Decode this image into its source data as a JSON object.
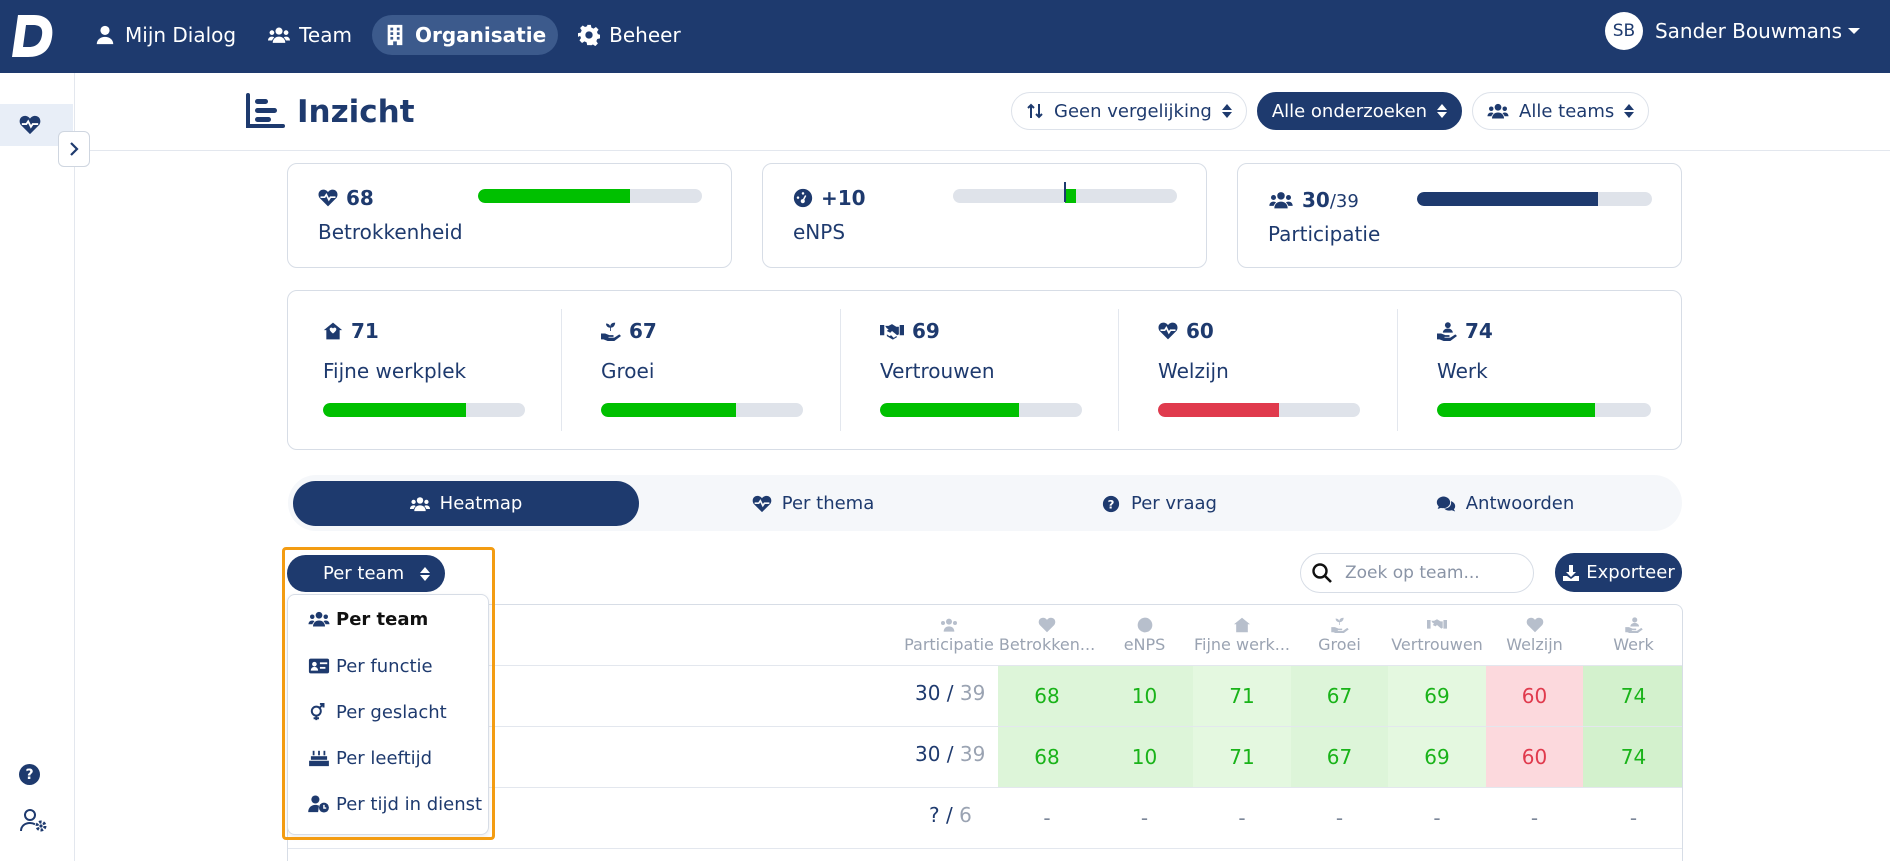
{
  "app": {
    "logo_letter": "D"
  },
  "nav": {
    "items": [
      {
        "label": "Mijn Dialog",
        "icon": "user-icon"
      },
      {
        "label": "Team",
        "icon": "users-icon"
      },
      {
        "label": "Organisatie",
        "icon": "building-icon",
        "active": true
      },
      {
        "label": "Beheer",
        "icon": "gear-icon"
      }
    ]
  },
  "user": {
    "initials": "SB",
    "name": "Sander Bouwmans"
  },
  "page": {
    "title": "Inzicht"
  },
  "filters": {
    "comparison": "Geen vergelijking",
    "surveys": "Alle onderzoeken",
    "teams": "Alle teams"
  },
  "kpis": {
    "engagement": {
      "value": "68",
      "label": "Betrokkenheid",
      "progress": 0.68,
      "color": "#00c000"
    },
    "enps": {
      "value": "+10",
      "label": "eNPS",
      "progress": 0.05,
      "color": "#00c000"
    },
    "participation": {
      "value": "30",
      "total": "/39",
      "label": "Participatie",
      "progress": 0.77,
      "color": "#1e3a6e"
    }
  },
  "themes": [
    {
      "value": "71",
      "label": "Fijne werkplek",
      "progress": 0.71,
      "color": "#00c000",
      "icon": "house-heart-icon"
    },
    {
      "value": "67",
      "label": "Groei",
      "progress": 0.67,
      "color": "#00c000",
      "icon": "hand-seedling-icon"
    },
    {
      "value": "69",
      "label": "Vertrouwen",
      "progress": 0.69,
      "color": "#00c000",
      "icon": "handshake-icon"
    },
    {
      "value": "60",
      "label": "Welzijn",
      "progress": 0.6,
      "color": "#e03a4d",
      "icon": "heart-pulse-icon"
    },
    {
      "value": "74",
      "label": "Werk",
      "progress": 0.74,
      "color": "#00c000",
      "icon": "hand-user-icon"
    }
  ],
  "tabs": [
    {
      "label": "Heatmap",
      "active": true
    },
    {
      "label": "Per thema"
    },
    {
      "label": "Per vraag"
    },
    {
      "label": "Antwoorden"
    }
  ],
  "grouping": {
    "selected": "Per team",
    "options": [
      "Per team",
      "Per functie",
      "Per geslacht",
      "Per leeftijd",
      "Per tijd in dienst"
    ]
  },
  "search": {
    "placeholder": "Zoek op team..."
  },
  "export_label": "Exporteer",
  "table": {
    "columns": [
      "Participatie",
      "Betrokken...",
      "eNPS",
      "Fijne werk...",
      "Groei",
      "Vertrouwen",
      "Welzijn",
      "Werk"
    ],
    "rows": [
      {
        "participation": "30",
        "total": "39",
        "values": [
          "68",
          "10",
          "71",
          "67",
          "69",
          "60",
          "74"
        ],
        "status": [
          "good",
          "good",
          "good",
          "good",
          "good",
          "bad",
          "good"
        ]
      },
      {
        "participation": "30",
        "total": "39",
        "values": [
          "68",
          "10",
          "71",
          "67",
          "69",
          "60",
          "74"
        ],
        "status": [
          "good",
          "good",
          "good",
          "good",
          "good",
          "bad",
          "good"
        ]
      },
      {
        "participation": "?",
        "total": "6",
        "values": [
          "-",
          "-",
          "-",
          "-",
          "-",
          "-",
          "-"
        ],
        "status": [
          "none",
          "none",
          "none",
          "none",
          "none",
          "none",
          "none"
        ]
      }
    ]
  }
}
